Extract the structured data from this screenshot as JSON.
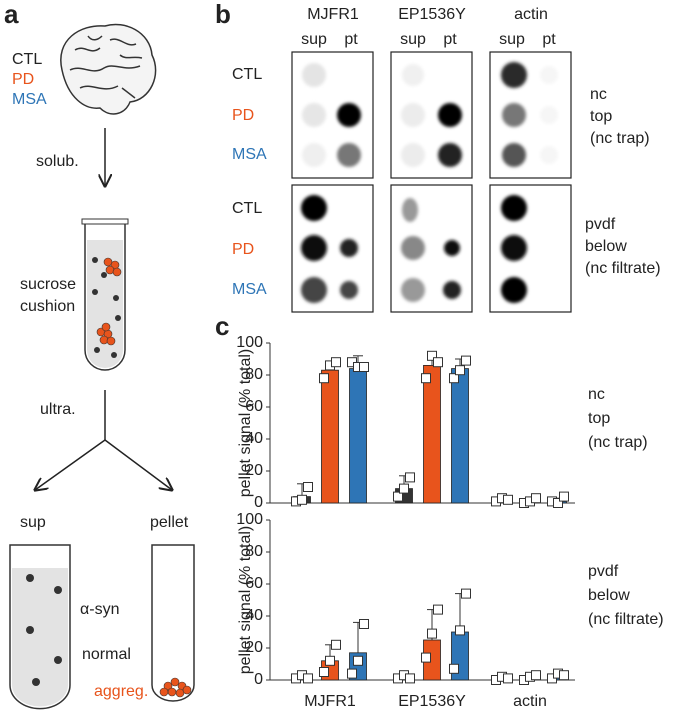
{
  "panel_a": {
    "label": "a",
    "groups": [
      "CTL",
      "PD",
      "MSA"
    ],
    "steps": [
      "solub.",
      "sucrose",
      "cushion",
      "ultra."
    ],
    "fractions": [
      "sup",
      "pellet"
    ],
    "tube_labels": [
      "α-syn",
      "normal",
      "aggreg."
    ]
  },
  "panel_b": {
    "label": "b",
    "antibodies": [
      "MJFR1",
      "EP1536Y",
      "actin"
    ],
    "fractions": [
      "sup",
      "pt"
    ],
    "rows": [
      "CTL",
      "PD",
      "MSA"
    ],
    "membranes": [
      [
        "nc",
        "top",
        "(nc trap)"
      ],
      [
        "pvdf",
        "below",
        "(nc filtrate)"
      ]
    ]
  },
  "panel_c": {
    "label": "c"
  },
  "chart_data": [
    {
      "type": "bar",
      "ylabel": "pellet signal (% total)",
      "annotation": [
        "nc",
        "top",
        "(nc trap)"
      ],
      "categories": [
        null,
        null,
        null
      ],
      "ylim": [
        0,
        100
      ],
      "yticks": [
        0,
        20,
        40,
        60,
        80,
        100
      ],
      "series": [
        {
          "color": "#333333",
          "values": [
            4,
            9,
            1
          ],
          "errors": [
            8,
            8,
            2
          ],
          "points": [
            [
              1,
              2,
              10
            ],
            [
              4,
              9,
              16
            ],
            [
              1,
              3,
              2
            ]
          ]
        },
        {
          "color": "#e8541c",
          "values": [
            83,
            86,
            1
          ],
          "errors": [
            4,
            7,
            2
          ],
          "points": [
            [
              78,
              86,
              88
            ],
            [
              78,
              92,
              88
            ],
            [
              0,
              1,
              3
            ]
          ]
        },
        {
          "color": "#2e75b6",
          "values": [
            84,
            84,
            1
          ],
          "errors": [
            8,
            6,
            2
          ],
          "points": [
            [
              88,
              85,
              85
            ],
            [
              78,
              83,
              89
            ],
            [
              1,
              0,
              4
            ]
          ]
        }
      ]
    },
    {
      "type": "bar",
      "ylabel": "pellet signal (% total)",
      "annotation": [
        "pvdf",
        "below",
        "(nc filtrate)"
      ],
      "categories": [
        "MJFR1",
        "EP1536Y",
        "actin"
      ],
      "ylim": [
        0,
        100
      ],
      "yticks": [
        0,
        20,
        40,
        60,
        80,
        100
      ],
      "series": [
        {
          "color": "#333333",
          "values": [
            2,
            2,
            1
          ],
          "errors": [
            2,
            2,
            1
          ],
          "points": [
            [
              1,
              3,
              1
            ],
            [
              1,
              3,
              1
            ],
            [
              0,
              2,
              1
            ]
          ]
        },
        {
          "color": "#e8541c",
          "values": [
            12,
            25,
            1
          ],
          "errors": [
            10,
            19,
            2
          ],
          "points": [
            [
              5,
              12,
              22
            ],
            [
              14,
              29,
              44
            ],
            [
              0,
              2,
              3
            ]
          ]
        },
        {
          "color": "#2e75b6",
          "values": [
            17,
            30,
            2
          ],
          "errors": [
            19,
            24,
            2
          ],
          "points": [
            [
              4,
              12,
              35
            ],
            [
              7,
              31,
              54
            ],
            [
              1,
              4,
              3
            ]
          ]
        }
      ]
    }
  ]
}
